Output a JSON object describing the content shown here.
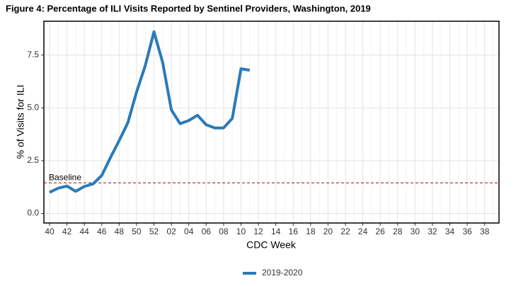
{
  "chart_data": {
    "type": "line",
    "title": "Figure 4: Percentage of ILI Visits Reported by Sentinel Providers, Washington, 2019",
    "x_label": "CDC Week",
    "y_label": "% of Visits for ILI",
    "categories": [
      "40",
      null,
      "42",
      null,
      "44",
      null,
      "46",
      null,
      "48",
      null,
      "50",
      null,
      "52",
      null,
      "02",
      null,
      "04",
      null,
      "06",
      null,
      "08",
      null,
      "10",
      null,
      "12",
      null,
      "14",
      null,
      "16",
      null,
      "18",
      null,
      "20",
      null,
      "22",
      null,
      "24",
      null,
      "26",
      null,
      "28",
      null,
      "30",
      null,
      "32",
      null,
      "34",
      null,
      "36",
      null,
      "38",
      null
    ],
    "series": [
      {
        "name": "2019-2020",
        "color": "#2a7ab8",
        "values": [
          1.0,
          1.2,
          1.3,
          1.05,
          1.28,
          1.4,
          1.8,
          2.65,
          3.45,
          4.3,
          5.75,
          7.0,
          8.6,
          7.15,
          4.9,
          4.25,
          4.4,
          4.65,
          4.2,
          4.05,
          4.05,
          4.5,
          6.85,
          6.78,
          null,
          null,
          null,
          null,
          null,
          null,
          null,
          null,
          null,
          null,
          null,
          null,
          null,
          null,
          null,
          null,
          null,
          null,
          null,
          null,
          null,
          null,
          null,
          null,
          null,
          null,
          null,
          null
        ]
      }
    ],
    "baseline": {
      "label": "Baseline",
      "value": 1.45,
      "color": "#b22222"
    },
    "ylim": [
      -0.45,
      9.1
    ],
    "yticks": [
      {
        "value": 0,
        "label": "0.0"
      },
      2.5,
      {
        "value": 5,
        "label": "5.0"
      },
      7.5
    ],
    "grid": true,
    "legend": "bottom"
  }
}
